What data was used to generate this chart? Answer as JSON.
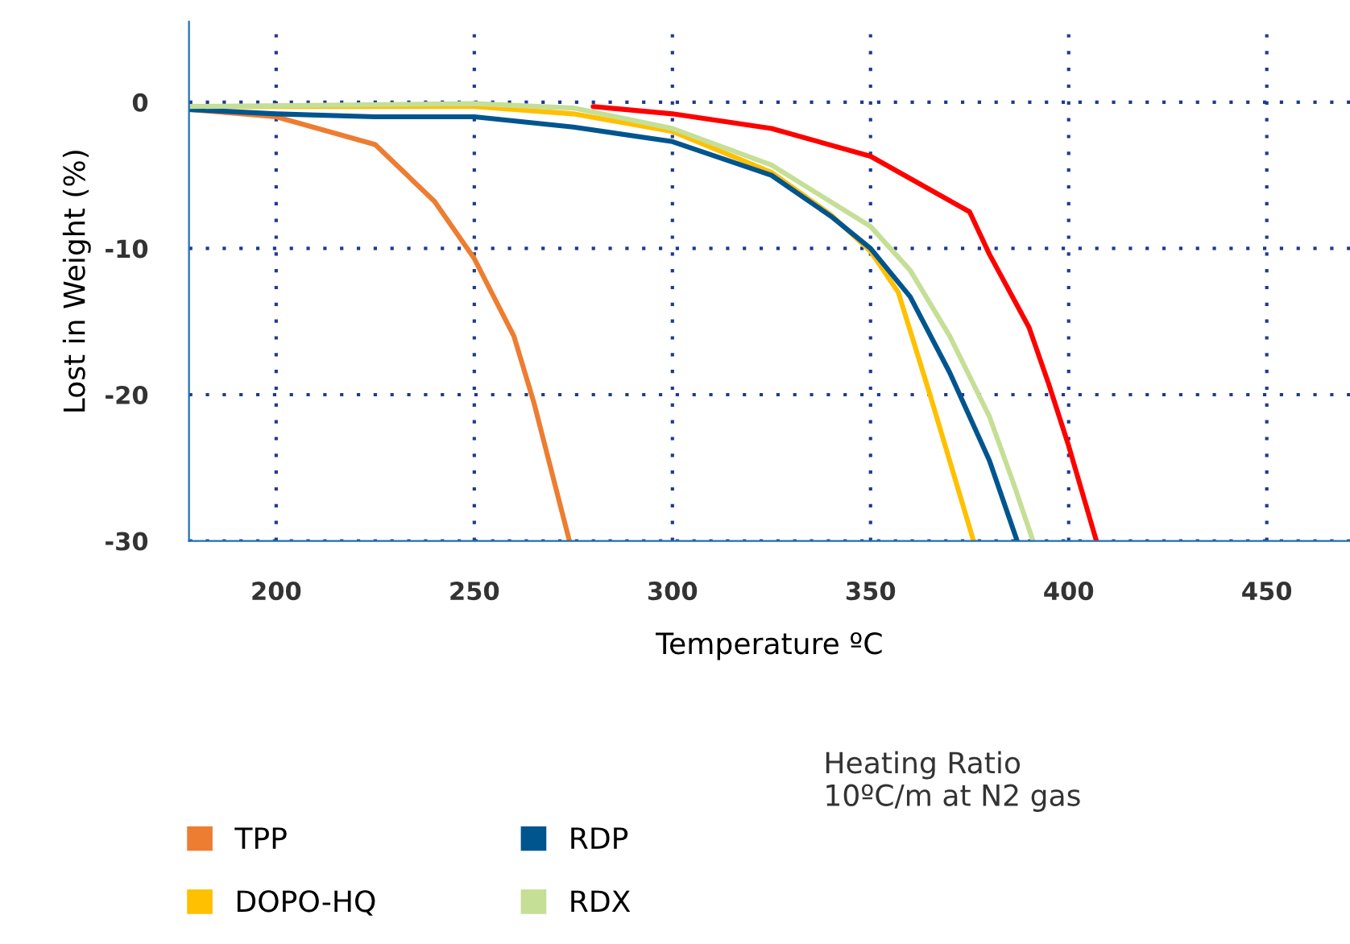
{
  "chart_data": {
    "type": "line",
    "xlabel": "Temperature ºC",
    "ylabel": "Lost in Weight (%)",
    "xlim": [
      178,
      471
    ],
    "ylim": [
      -30,
      5.5
    ],
    "xticks": [
      200,
      250,
      300,
      350,
      400,
      450
    ],
    "yticks": [
      0,
      -10,
      -20,
      -30
    ],
    "grid": true,
    "legend": "bottom",
    "line_style": "solid",
    "marker": "none",
    "annotations": [
      "Heating Ratio\n10ºC/m at N2 gas"
    ],
    "series": [
      {
        "name": "TPP",
        "color": "#ed7d31",
        "x": [
          178,
          200,
          225,
          240,
          250,
          260,
          265,
          274
        ],
        "values": [
          -0.5,
          -1.0,
          -2.9,
          -6.8,
          -10.7,
          -16,
          -20.5,
          -30
        ]
      },
      {
        "name": "DOPO-HQ",
        "color": "#ffc000",
        "x": [
          178,
          250,
          275,
          300,
          325,
          340,
          350,
          357,
          365,
          376
        ],
        "values": [
          -0.3,
          -0.3,
          -0.8,
          -2.0,
          -4.8,
          -7.7,
          -10.2,
          -13,
          -20,
          -30
        ]
      },
      {
        "name": "RDP",
        "color": "#00558f",
        "x": [
          178,
          200,
          225,
          250,
          275,
          300,
          325,
          340,
          350,
          360,
          370,
          380,
          387
        ],
        "values": [
          -0.5,
          -0.8,
          -1.0,
          -1.0,
          -1.7,
          -2.7,
          -5.0,
          -7.8,
          -10,
          -13.3,
          -18.5,
          -24.5,
          -30
        ]
      },
      {
        "name": "RDX",
        "color": "#c5df96",
        "x": [
          178,
          250,
          275,
          300,
          325,
          350,
          360,
          370,
          380,
          386,
          391
        ],
        "values": [
          -0.3,
          -0.1,
          -0.4,
          -1.8,
          -4.3,
          -8.5,
          -11.5,
          -16,
          -21.5,
          -26,
          -30
        ]
      },
      {
        "color": "#ff0000",
        "x": [
          280,
          300,
          325,
          350,
          375,
          380,
          390,
          395,
          400,
          407
        ],
        "values": [
          -0.3,
          -0.8,
          -1.8,
          -3.7,
          -7.5,
          -10.4,
          -15.4,
          -19.3,
          -23.5,
          -30
        ]
      }
    ]
  }
}
